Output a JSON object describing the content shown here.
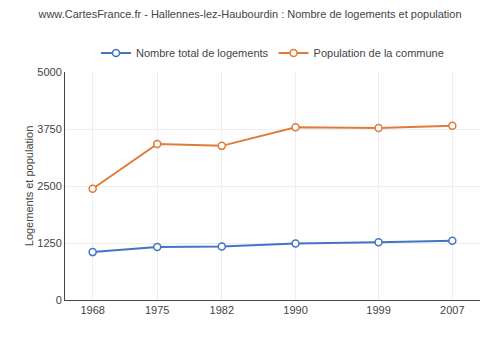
{
  "chart_data": {
    "type": "line",
    "title": "www.CartesFrance.fr - Hallennes-lez-Haubourdin : Nombre de logements et population",
    "ylabel": "Logements et population",
    "x": [
      1968,
      1975,
      1982,
      1990,
      1999,
      2007
    ],
    "series": [
      {
        "name": "Nombre total de logements",
        "color": "#4472c4",
        "marker": "circle",
        "values": [
          1050,
          1160,
          1175,
          1240,
          1265,
          1300
        ]
      },
      {
        "name": "Population de la commune",
        "color": "#e07b39",
        "marker": "circle",
        "values": [
          2440,
          3420,
          3380,
          3790,
          3770,
          3820
        ]
      }
    ],
    "xlim": [
      1965,
      2010
    ],
    "xticks": [
      1968,
      1975,
      1982,
      1990,
      1999,
      2007
    ],
    "ylim": [
      0,
      5000
    ],
    "yticks": [
      0,
      1250,
      2500,
      3750,
      5000
    ],
    "grid": true,
    "legend": "top"
  }
}
